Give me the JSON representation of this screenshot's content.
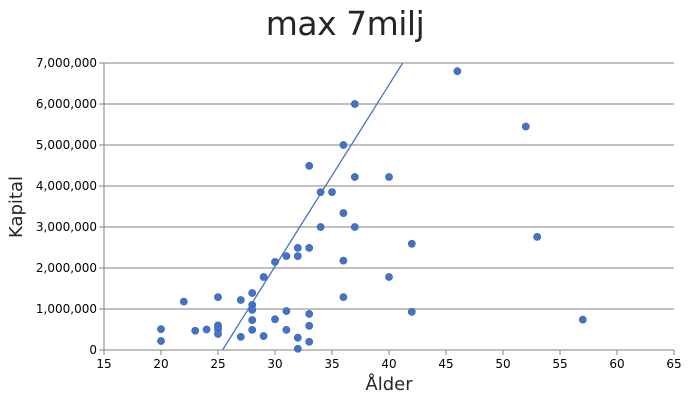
{
  "chart_data": {
    "type": "scatter",
    "title": "max 7milj",
    "xlabel": "Ålder",
    "ylabel": "Kapital",
    "xlim": [
      15,
      65
    ],
    "ylim": [
      0,
      7000000
    ],
    "x_ticks": [
      15,
      20,
      25,
      30,
      35,
      40,
      45,
      50,
      55,
      60,
      65
    ],
    "y_ticks": [
      0,
      1000000,
      2000000,
      3000000,
      4000000,
      5000000,
      6000000,
      7000000
    ],
    "y_tick_labels": [
      "0",
      "1,000,000",
      "2,000,000",
      "3,000,000",
      "4,000,000",
      "5,000,000",
      "6,000,000",
      "7,000,000"
    ],
    "grid": "horizontal",
    "legend": "none",
    "marker_color": "#4472C4",
    "trendline": {
      "type": "linear",
      "color": "#4472C4",
      "points": [
        [
          25.4,
          0
        ],
        [
          41.2,
          7000000
        ]
      ]
    },
    "series": [
      {
        "name": "Kapital",
        "points": [
          [
            20,
            510000
          ],
          [
            20,
            220000
          ],
          [
            22,
            1180000
          ],
          [
            23,
            470000
          ],
          [
            24,
            500000
          ],
          [
            25,
            1290000
          ],
          [
            25,
            600000
          ],
          [
            25,
            550000
          ],
          [
            25,
            500000
          ],
          [
            25,
            390000
          ],
          [
            27,
            1220000
          ],
          [
            27,
            320000
          ],
          [
            28,
            1390000
          ],
          [
            28,
            1100000
          ],
          [
            28,
            980000
          ],
          [
            28,
            730000
          ],
          [
            28,
            490000
          ],
          [
            29,
            1780000
          ],
          [
            29,
            340000
          ],
          [
            30,
            2150000
          ],
          [
            30,
            750000
          ],
          [
            31,
            2290000
          ],
          [
            31,
            950000
          ],
          [
            31,
            490000
          ],
          [
            32,
            2490000
          ],
          [
            32,
            2290000
          ],
          [
            32,
            300000
          ],
          [
            32,
            30000
          ],
          [
            33,
            4490000
          ],
          [
            33,
            2490000
          ],
          [
            33,
            880000
          ],
          [
            33,
            590000
          ],
          [
            33,
            200000
          ],
          [
            34,
            3850000
          ],
          [
            34,
            3000000
          ],
          [
            35,
            3850000
          ],
          [
            36,
            5000000
          ],
          [
            36,
            3340000
          ],
          [
            36,
            2180000
          ],
          [
            36,
            1290000
          ],
          [
            37,
            6000000
          ],
          [
            37,
            4220000
          ],
          [
            37,
            3000000
          ],
          [
            40,
            4220000
          ],
          [
            40,
            1780000
          ],
          [
            42,
            2590000
          ],
          [
            42,
            930000
          ],
          [
            46,
            6800000
          ],
          [
            52,
            5450000
          ],
          [
            53,
            2760000
          ],
          [
            57,
            740000
          ]
        ]
      }
    ]
  }
}
